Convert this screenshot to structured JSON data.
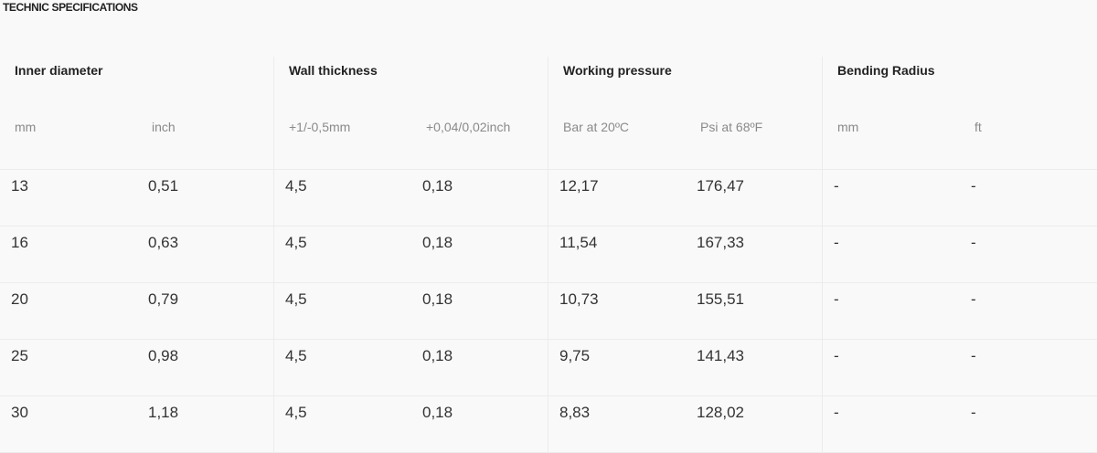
{
  "title": "TECHNIC SPECIFICATIONS",
  "groups": [
    {
      "label": "Inner diameter"
    },
    {
      "label": "Wall thickness"
    },
    {
      "label": "Working pressure"
    },
    {
      "label": "Bending Radius"
    }
  ],
  "units": [
    "mm",
    "inch",
    "+1/-0,5mm",
    "+0,04/0,02inch",
    "Bar at 20ºC",
    "Psi at 68ºF",
    "mm",
    "ft"
  ],
  "rows": [
    [
      "13",
      "0,51",
      "4,5",
      "0,18",
      "12,17",
      "176,47",
      "-",
      "-"
    ],
    [
      "16",
      "0,63",
      "4,5",
      "0,18",
      "11,54",
      "167,33",
      "-",
      "-"
    ],
    [
      "20",
      "0,79",
      "4,5",
      "0,18",
      "10,73",
      "155,51",
      "-",
      "-"
    ],
    [
      "25",
      "0,98",
      "4,5",
      "0,18",
      "9,75",
      "141,43",
      "-",
      "-"
    ],
    [
      "30",
      "1,18",
      "4,5",
      "0,18",
      "8,83",
      "128,02",
      "-",
      "-"
    ]
  ]
}
